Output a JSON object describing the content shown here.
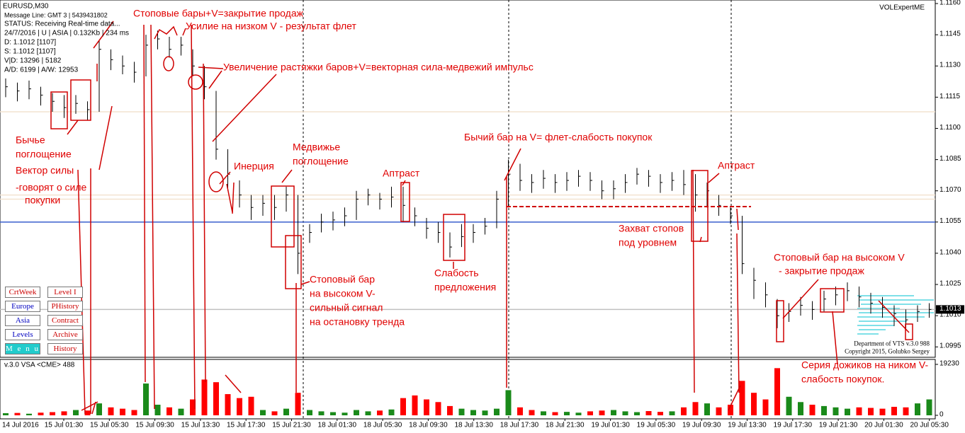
{
  "chart_data": {
    "type": "ohlc",
    "high": [
      1.1124,
      1.1122,
      1.1123,
      1.112,
      1.1117,
      1.1116,
      1.1116,
      1.1113,
      1.1142,
      1.1138,
      1.1135,
      1.1132,
      1.1145,
      1.1147,
      1.1144,
      1.1144,
      1.1138,
      1.113,
      1.1118,
      1.109,
      1.1075,
      1.1068,
      1.1068,
      1.1068,
      1.1072,
      1.1068,
      1.1054,
      1.1059,
      1.106,
      1.1062,
      1.107,
      1.1071,
      1.1069,
      1.1072,
      1.1072,
      1.1062,
      1.1057,
      1.1055,
      1.105,
      1.1054,
      1.1054,
      1.1057,
      1.107,
      1.1085,
      1.1083,
      1.1078,
      1.108,
      1.1078,
      1.1079,
      1.108,
      1.1079,
      1.1075,
      1.1075,
      1.1078,
      1.1081,
      1.108,
      1.1078,
      1.1079,
      1.108,
      1.1078,
      1.1074,
      1.1068,
      1.1062,
      1.1058,
      1.1033,
      1.1026,
      1.1018,
      1.1016,
      1.1019,
      1.1017,
      1.1022,
      1.1024,
      1.1026,
      1.1024,
      1.1021,
      1.1019,
      1.1015,
      1.1013,
      1.1015,
      1.1016
    ],
    "low": [
      1.1115,
      1.1113,
      1.1114,
      1.1111,
      1.1108,
      1.1105,
      1.1107,
      1.1104,
      1.1108,
      1.1128,
      1.1126,
      1.1122,
      1.1125,
      1.1138,
      1.1134,
      1.1135,
      1.1125,
      1.1114,
      1.1085,
      1.107,
      1.1062,
      1.1056,
      1.1058,
      1.1056,
      1.106,
      1.103,
      1.1045,
      1.105,
      1.1051,
      1.1053,
      1.1056,
      1.1063,
      1.1061,
      1.1062,
      1.1055,
      1.1053,
      1.1047,
      1.1045,
      1.1038,
      1.1043,
      1.1045,
      1.1049,
      1.1052,
      1.1062,
      1.107,
      1.1069,
      1.1071,
      1.1069,
      1.107,
      1.1072,
      1.107,
      1.1066,
      1.1066,
      1.1069,
      1.1073,
      1.1072,
      1.1069,
      1.107,
      1.1068,
      1.106,
      1.1062,
      1.1058,
      1.1054,
      1.103,
      1.1018,
      1.1014,
      1.1004,
      1.1007,
      1.101,
      1.1008,
      1.1012,
      1.1015,
      1.1017,
      1.1014,
      1.1011,
      1.1009,
      1.1005,
      1.1003,
      1.1007,
      1.1009
    ],
    "close": [
      1.112,
      1.1118,
      1.1119,
      1.1116,
      1.1113,
      1.111,
      1.1112,
      1.1109,
      1.1138,
      1.1133,
      1.113,
      1.1127,
      1.114,
      1.1143,
      1.1138,
      1.114,
      1.113,
      1.112,
      1.109,
      1.1078,
      1.1068,
      1.1062,
      1.1064,
      1.1062,
      1.1068,
      1.104,
      1.105,
      1.1055,
      1.1056,
      1.1058,
      1.1066,
      1.1068,
      1.1066,
      1.1067,
      1.1063,
      1.1058,
      1.1052,
      1.105,
      1.1043,
      1.1048,
      1.105,
      1.1053,
      1.1066,
      1.1078,
      1.1075,
      1.1074,
      1.1076,
      1.1074,
      1.1075,
      1.1077,
      1.1075,
      1.107,
      1.1071,
      1.1074,
      1.1078,
      1.1077,
      1.1074,
      1.1075,
      1.1073,
      1.1068,
      1.107,
      1.1063,
      1.1058,
      1.1035,
      1.1027,
      1.102,
      1.101,
      1.1012,
      1.1015,
      1.1013,
      1.1018,
      1.102,
      1.1022,
      1.1019,
      1.1016,
      1.1014,
      1.1011,
      1.1008,
      1.1012,
      1.1013
    ],
    "volume": [
      800,
      900,
      600,
      1000,
      1200,
      1500,
      2000,
      1800,
      4500,
      3000,
      2500,
      2000,
      12000,
      4000,
      3000,
      2500,
      6000,
      13500,
      12500,
      8000,
      6500,
      7000,
      2000,
      1500,
      2500,
      8500,
      2000,
      1500,
      1200,
      1000,
      2000,
      1500,
      1800,
      2200,
      6500,
      7500,
      6000,
      5000,
      3500,
      2500,
      2000,
      1800,
      2500,
      9500,
      3000,
      2000,
      1500,
      1200,
      1300,
      1000,
      1500,
      1800,
      2000,
      1500,
      1200,
      1600,
      1300,
      1500,
      3000,
      5000,
      4500,
      3000,
      4000,
      13000,
      8500,
      6000,
      17800,
      7000,
      5000,
      4000,
      3500,
      3000,
      2500,
      3000,
      2800,
      2500,
      3200,
      3000,
      4500,
      6000
    ],
    "bar_color": "#000",
    "up_color": "#1a8a1a",
    "down_color": "#ff0000",
    "ylim": [
      1.099,
      1.116
    ],
    "yticks": [
      {
        "value": 1.116,
        "label": "1.1160"
      },
      1.1145,
      {
        "value": 1.113,
        "label": "1.1130"
      },
      1.1115,
      {
        "value": 1.11,
        "label": "1.1100"
      },
      1.1085,
      {
        "value": 1.107,
        "label": "1.1070"
      },
      1.1055,
      {
        "value": 1.104,
        "label": "1.1040"
      },
      1.1025,
      {
        "value": 1.101,
        "label": "1.1010"
      },
      1.0995
    ],
    "volume_ylim": [
      0,
      19230
    ],
    "volume_ticks": [
      19230,
      0
    ],
    "current_price": 1.1013,
    "levels": [
      {
        "value": 1.1108,
        "color": "#f3e3d0"
      },
      {
        "value": 1.1068,
        "color": "#f3e3d0"
      },
      {
        "value": 1.1066,
        "color": "#f3e3d0"
      },
      {
        "value": 1.1055,
        "color": "#3a5fcd"
      },
      {
        "value": 1.1013,
        "color": "#c0c0c0"
      }
    ],
    "x_labels": [
      "14 Jul 2016",
      "15 Jul 01:30",
      "15 Jul 05:30",
      "15 Jul 09:30",
      "15 Jul 13:30",
      "15 Jul 17:30",
      "15 Jul 21:30",
      "18 Jul 01:30",
      "18 Jul 05:30",
      "18 Jul 09:30",
      "18 Jul 13:30",
      "18 Jul 17:30",
      "18 Jul 21:30",
      "19 Jul 01:30",
      "19 Jul 05:30",
      "19 Jul 09:30",
      "19 Jul 13:30",
      "19 Jul 17:30",
      "19 Jul 21:30",
      "20 Jul 01:30",
      "20 Jul 05:30"
    ]
  },
  "info_lines": [
    "EURUSD,M30",
    "Message Line: GMT 3 | 5439431802",
    "STATUS:  Receiving Real-time data...",
    "24/7/2016 | U | ASIA | 0.132Kb | 234 ms",
    "D: 1.1012  [1107]",
    "S: 1.1012  [1107]",
    "V|D: 13296 | 5182",
    "A/D: 6199 | A/W: 12953"
  ],
  "brand": "VOLExpertME",
  "footer": [
    "Department of VTS  v.3.0  988",
    "Copyright 2015, Golubko Sergey"
  ],
  "indicator_label": "v.3.0 VSA  <CME> 488",
  "buttons": [
    "CrtWeek",
    "Level I",
    "Europe",
    "PHistory",
    "Asia",
    "Contract",
    "Levels",
    "Archive",
    "M e n u",
    "History"
  ],
  "annotations": [
    "Стоповые бары+V=закрытие продаж",
    "Усилие на низком V - результат флет",
    "Увеличение растяжки баров+V=векторная сила-медвежий импульс",
    "Бычье",
    "поглощение",
    "Вектор силы",
    "-говорят о силе",
    "покупки",
    "Инерция",
    "Медвижье",
    "поглощение",
    "Аптраст",
    "Бычий бар на V= флет-слабость покупок",
    "Аптраст",
    "Захват стопов",
    "под уровнем",
    "Слабость",
    "предложения",
    "Стоповый бар",
    "на высоком V-",
    "сильный сигнал",
    "на остановку тренда",
    "Стоповый бар на высоком V",
    "- закрытие продаж",
    "Серия дожиков на ником V-",
    "слабость покупок."
  ]
}
